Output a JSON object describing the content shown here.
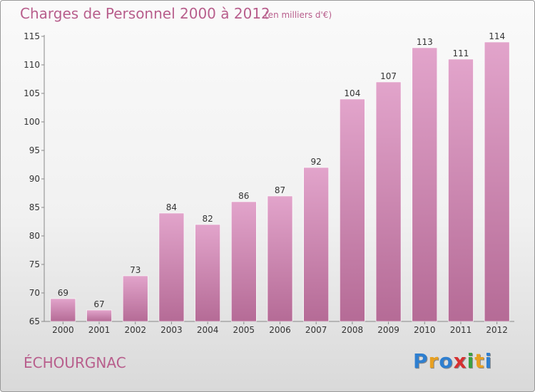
{
  "chart_data": {
    "type": "bar",
    "title": "Charges de Personnel 2000 à 2012",
    "subtitle": "(en milliers d'€)",
    "categories": [
      "2000",
      "2001",
      "2002",
      "2003",
      "2004",
      "2005",
      "2006",
      "2007",
      "2008",
      "2009",
      "2010",
      "2011",
      "2012"
    ],
    "values": [
      69,
      67,
      73,
      84,
      82,
      86,
      87,
      92,
      104,
      107,
      113,
      111,
      114
    ],
    "ylim": [
      65,
      115
    ],
    "yticks": [
      65,
      70,
      75,
      80,
      85,
      90,
      95,
      100,
      105,
      110,
      115
    ],
    "xlabel": "",
    "ylabel": "",
    "grid": false
  },
  "place_name": "ÉCHOURGNAC",
  "logo": {
    "letters": [
      "P",
      "r",
      "o",
      "x",
      "i",
      "t",
      "i"
    ],
    "colors": [
      "#2e7fd0",
      "#e8a020",
      "#2e7fd0",
      "#d63030",
      "#3aa040",
      "#e8a020",
      "#2e7fd0"
    ]
  },
  "colors": {
    "bar_top": "#e2a4cb",
    "bar_bottom": "#b56b96",
    "text_accent": "#b85e8c",
    "axis": "#888888"
  }
}
